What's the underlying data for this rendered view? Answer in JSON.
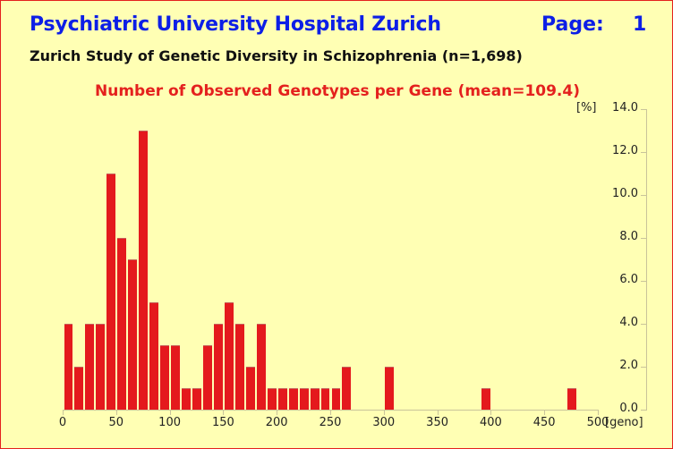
{
  "header": {
    "title": "Psychiatric University Hospital Zurich",
    "page_label": "Page:",
    "page_number": "1"
  },
  "subtitle": "Zurich Study of Genetic Diversity in Schizophrenia (n=1,698)",
  "colors": {
    "background": "#ffffb4",
    "border": "#e4211e",
    "title": "#0d1fe6",
    "bar": "#e4191d",
    "chart_title": "#e4211e"
  },
  "chart_data": {
    "type": "bar",
    "title": "Number of Observed Genotypes per Gene (mean=109.4)",
    "xlabel": "[geno]",
    "ylabel": "[%]",
    "xlim": [
      0,
      500
    ],
    "ylim": [
      0,
      14
    ],
    "bin_width": 10,
    "x_ticks": [
      "0",
      "50",
      "100",
      "150",
      "200",
      "250",
      "300",
      "350",
      "400",
      "450",
      "500"
    ],
    "y_ticks": [
      "0.0",
      "2.0",
      "4.0",
      "6.0",
      "8.0",
      "10.0",
      "12.0",
      "14.0"
    ],
    "y_axis_position": "right",
    "grid": false,
    "categories": [
      "0-10",
      "10-20",
      "20-30",
      "30-40",
      "40-50",
      "50-60",
      "60-70",
      "70-80",
      "80-90",
      "90-100",
      "100-110",
      "110-120",
      "120-130",
      "130-140",
      "140-150",
      "150-160",
      "160-170",
      "170-180",
      "180-190",
      "190-200",
      "200-210",
      "210-220",
      "220-230",
      "230-240",
      "240-250",
      "250-260",
      "260-270",
      "300-310",
      "390-400",
      "470-480"
    ],
    "bin_starts": [
      0,
      10,
      20,
      30,
      40,
      50,
      60,
      70,
      80,
      90,
      100,
      110,
      120,
      130,
      140,
      150,
      160,
      170,
      180,
      190,
      200,
      210,
      220,
      230,
      240,
      250,
      260,
      300,
      390,
      470
    ],
    "values": [
      4,
      2,
      4,
      4,
      11,
      8,
      7,
      13,
      5,
      3,
      3,
      1,
      1,
      3,
      4,
      5,
      4,
      2,
      4,
      1,
      1,
      1,
      1,
      1,
      1,
      1,
      2,
      2,
      1,
      1
    ]
  }
}
